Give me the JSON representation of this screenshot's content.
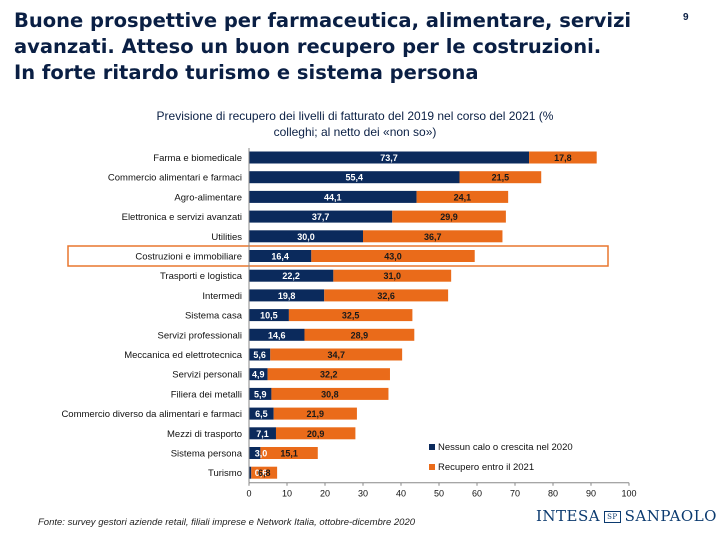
{
  "headline": {
    "lines": [
      "Buone prospettive per farmaceutica, alimentare, servizi",
      "avanzati. Atteso un buon recupero per le costruzioni.",
      "In forte ritardo turismo e sistema persona"
    ]
  },
  "page_number": "9",
  "subtitle": {
    "lines": [
      "Previsione di recupero dei livelli di fatturato del 2019 nel corso del 2021 (%",
      "colleghi; al netto dei «non so»)"
    ]
  },
  "colors": {
    "series_a": "#0b2a5c",
    "series_b": "#ea6b1a",
    "highlight": "#e8772e",
    "title": "#0a1f44"
  },
  "chart_data": {
    "type": "bar",
    "orientation": "horizontal",
    "stacked": true,
    "categories": [
      "Farma e biomedicale",
      "Commercio alimentari e farmaci",
      "Agro-alimentare",
      "Elettronica e servizi avanzati",
      "Utilities",
      "Costruzioni e immobiliare",
      "Trasporti e logistica",
      "Intermedi",
      "Sistema casa",
      "Servizi professionali",
      "Meccanica ed elettrotecnica",
      "Servizi personali",
      "Filiera dei metalli",
      "Commercio diverso da alimentari e farmaci",
      "Mezzi di trasporto",
      "Sistema persona",
      "Turismo"
    ],
    "series": [
      {
        "name": "Nessun calo o crescita nel 2020",
        "color": "#0b2a5c",
        "values": [
          73.7,
          55.4,
          44.1,
          37.7,
          30.0,
          16.4,
          22.2,
          19.8,
          10.5,
          14.6,
          5.6,
          4.9,
          5.9,
          6.5,
          7.1,
          3.0,
          0.6
        ]
      },
      {
        "name": "Recupero entro il 2021",
        "color": "#ea6b1a",
        "values": [
          17.8,
          21.5,
          24.1,
          29.9,
          36.7,
          43.0,
          31.0,
          32.6,
          32.5,
          28.9,
          34.7,
          32.2,
          30.8,
          21.9,
          20.9,
          15.1,
          6.8
        ]
      }
    ],
    "data_labels_a": [
      "73,7",
      "55,4",
      "44,1",
      "37,7",
      "30,0",
      "16,4",
      "22,2",
      "19,8",
      "10,5",
      "14,6",
      "5,6",
      "4,9",
      "5,9",
      "6,5",
      "7,1",
      "3,0",
      "0,6"
    ],
    "data_labels_b": [
      "17,8",
      "21,5",
      "24,1",
      "29,9",
      "36,7",
      "43,0",
      "31,0",
      "32,6",
      "32,5",
      "28,9",
      "34,7",
      "32,2",
      "30,8",
      "21,9",
      "20,9",
      "15,1",
      "6,8"
    ],
    "highlighted_category": "Costruzioni e immobiliare",
    "xlim": [
      0,
      100
    ],
    "xticks": [
      "0",
      "10",
      "20",
      "30",
      "40",
      "50",
      "60",
      "70",
      "80",
      "90",
      "100"
    ],
    "legend_position": "right",
    "xlabel": "",
    "ylabel": ""
  },
  "source": "Fonte: survey gestori aziende retail, filiali imprese e Network Italia, ottobre-dicembre 2020",
  "logo": {
    "left": "INTESA",
    "mark": "SP",
    "right": "SANPAOLO"
  }
}
